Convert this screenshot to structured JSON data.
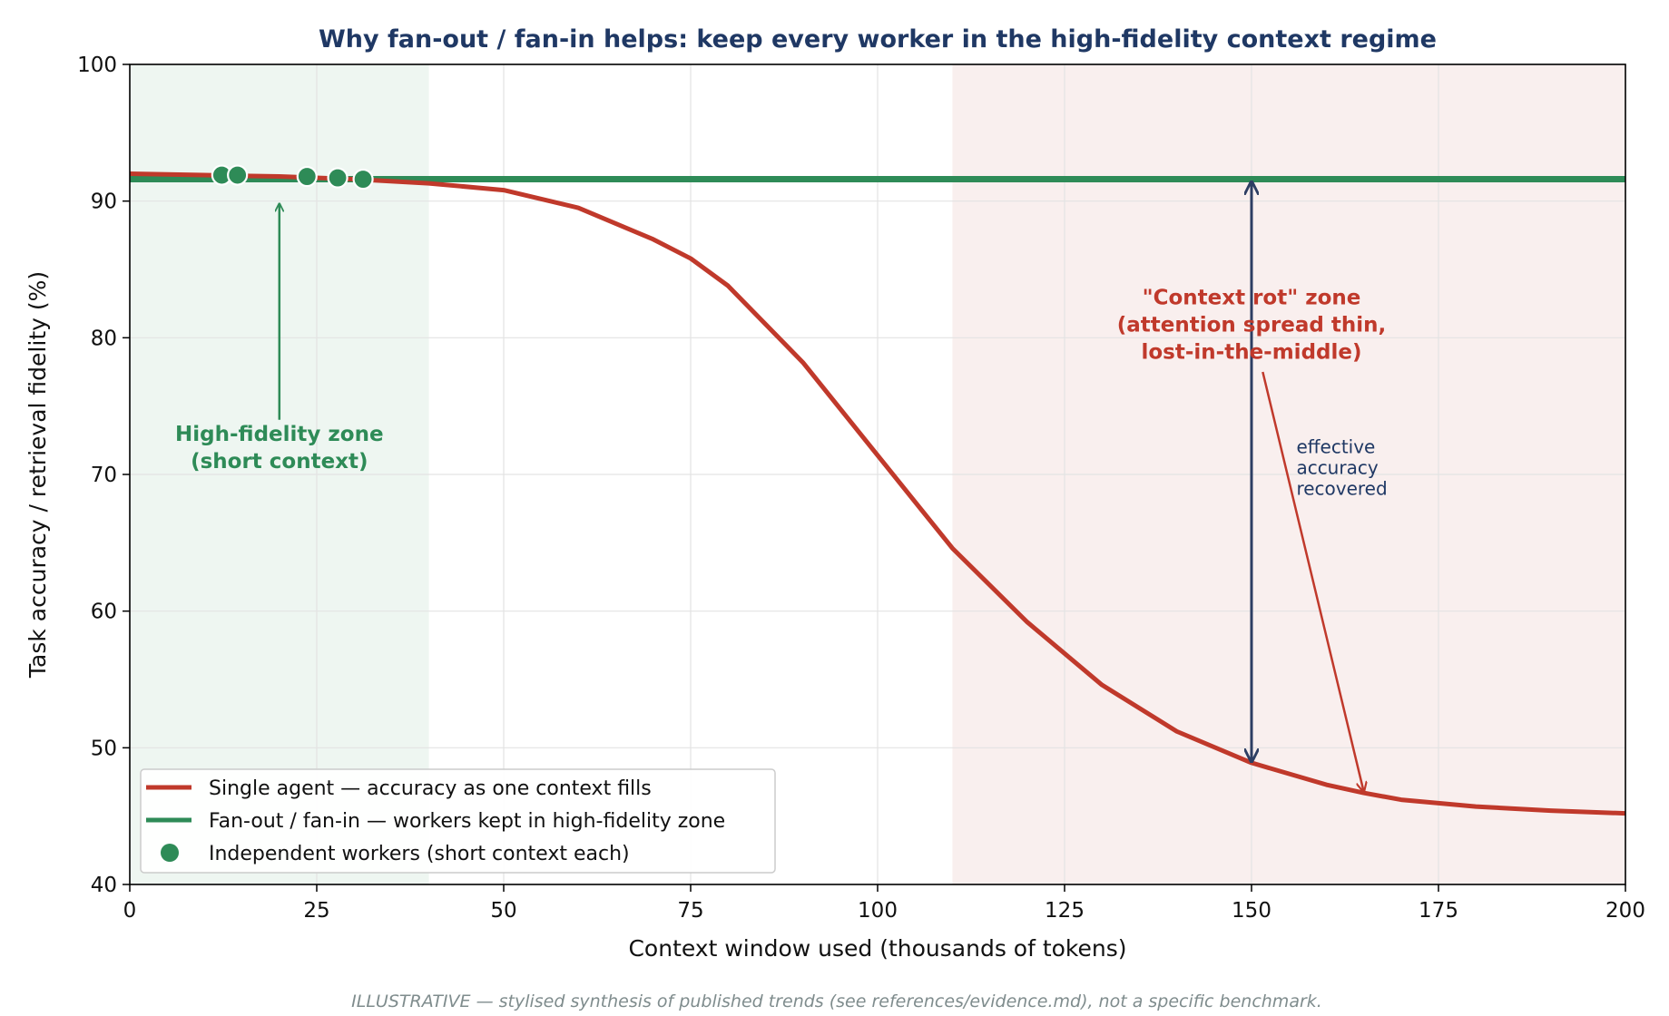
{
  "colors": {
    "single_agent": "#c0392b",
    "fan_out": "#2e8b57",
    "workers": "#2e8b57",
    "recovery_arrow": "#2d3e63",
    "title": "#1f3864",
    "high_zone_fill": "#eef6f1",
    "rot_zone_fill": "#f9efee",
    "footnote": "#7f8c8d"
  },
  "footnote": "ILLUSTRATIVE — stylised synthesis of published trends (see references/evidence.md), not a specific benchmark.",
  "chart_data": {
    "type": "line",
    "title": "Why fan-out / fan-in helps: keep every worker in the high-fidelity context regime",
    "xlabel": "Context window used (thousands of tokens)",
    "ylabel": "Task accuracy / retrieval fidelity (%)",
    "xlim": [
      0,
      200
    ],
    "ylim": [
      40,
      100
    ],
    "xticks": [
      0,
      25,
      50,
      75,
      100,
      125,
      150,
      175,
      200
    ],
    "yticks": [
      40,
      50,
      60,
      70,
      80,
      90,
      100
    ],
    "grid": true,
    "legend_position": "lower-left",
    "series": [
      {
        "name": "Single agent — accuracy as one context fills",
        "kind": "line",
        "color": "#c0392b",
        "x": [
          0,
          10,
          20,
          30,
          40,
          50,
          60,
          70,
          75,
          80,
          90,
          100,
          110,
          120,
          130,
          140,
          150,
          160,
          165,
          170,
          180,
          190,
          200
        ],
        "y": [
          92.0,
          91.9,
          91.8,
          91.6,
          91.3,
          90.8,
          89.5,
          87.2,
          85.8,
          83.8,
          78.2,
          71.4,
          64.6,
          59.2,
          54.6,
          51.2,
          48.9,
          47.3,
          46.7,
          46.2,
          45.7,
          45.4,
          45.2
        ]
      },
      {
        "name": "Fan-out / fan-in — workers kept in high-fidelity zone",
        "kind": "line",
        "color": "#2e8b57",
        "x": [
          0,
          200
        ],
        "y": [
          91.6,
          91.6
        ]
      },
      {
        "name": "Independent workers (short context each)",
        "kind": "scatter",
        "color": "#2e8b57",
        "x": [
          12.3,
          14.4,
          23.7,
          27.8,
          31.2
        ],
        "y": [
          91.9,
          91.9,
          91.8,
          91.7,
          91.6
        ]
      }
    ],
    "zones": [
      {
        "label": "High-fidelity zone\n(short context)",
        "x_range": [
          0,
          40
        ],
        "color": "#eef6f1"
      },
      {
        "label": "\"Context rot\" zone\n(attention spread thin,\nlost-in-the-middle)",
        "x_range": [
          110,
          200
        ],
        "color": "#f9efee"
      }
    ],
    "annotations": [
      {
        "text": "High-fidelity zone\n(short context)",
        "text_xy": [
          20,
          72
        ],
        "arrow_to": [
          20,
          89.8
        ]
      },
      {
        "text": "\"Context rot\" zone\n(attention spread thin,\nlost-in-the-middle)",
        "text_xy": [
          150,
          81
        ],
        "arrow_from": [
          151.5,
          77.5
        ],
        "arrow_to": [
          165,
          46.8
        ]
      },
      {
        "text": "effective\naccuracy\nrecovered",
        "text_xy": [
          156,
          70.5
        ],
        "double_arrow": {
          "x": 150,
          "y_from": 49.0,
          "y_to": 91.4
        }
      }
    ]
  }
}
